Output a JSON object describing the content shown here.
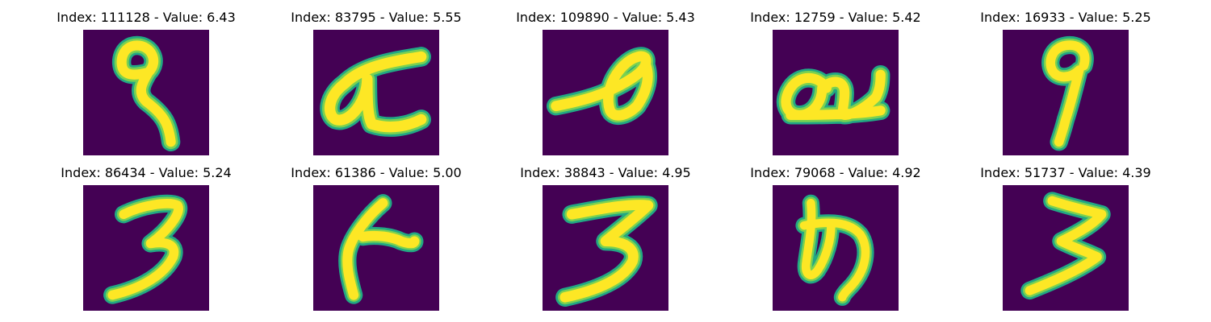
{
  "colormap": {
    "background": "#440154",
    "halo": "#22a884",
    "edge": "#7ad151",
    "stroke": "#fde725"
  },
  "panels": [
    {
      "title": "Index: 111128 - Value: 6.43",
      "glyph": "nine-shape"
    },
    {
      "title": "Index: 83795 - Value: 5.55",
      "glyph": "alpha-shape"
    },
    {
      "title": "Index: 109890 - Value: 5.43",
      "glyph": "leaf-shape"
    },
    {
      "title": "Index: 12759 - Value: 5.42",
      "glyph": "loop-shape"
    },
    {
      "title": "Index: 16933 - Value: 5.25",
      "glyph": "nine-shape"
    },
    {
      "title": "Index: 86434 - Value: 5.24",
      "glyph": "three-shape"
    },
    {
      "title": "Index: 61386 - Value: 5.00",
      "glyph": "hook-shape"
    },
    {
      "title": "Index: 38843 - Value: 4.95",
      "glyph": "three-shape"
    },
    {
      "title": "Index: 79068 - Value: 4.92",
      "glyph": "curl-shape"
    },
    {
      "title": "Index: 51737 - Value: 4.39",
      "glyph": "zigzag-three-shape"
    }
  ]
}
